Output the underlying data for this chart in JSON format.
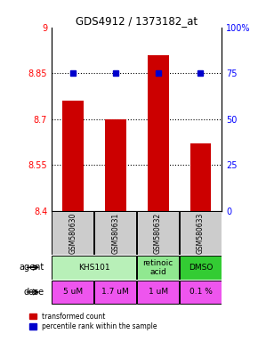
{
  "title": "GDS4912 / 1373182_at",
  "samples": [
    "GSM580630",
    "GSM580631",
    "GSM580632",
    "GSM580633"
  ],
  "bar_values": [
    8.76,
    8.7,
    8.91,
    8.62
  ],
  "dot_values": [
    75,
    75,
    75,
    75
  ],
  "ylim_left": [
    8.4,
    9.0
  ],
  "ylim_right": [
    0,
    100
  ],
  "yticks_left": [
    8.4,
    8.55,
    8.7,
    8.85,
    9.0
  ],
  "yticks_right": [
    0,
    25,
    50,
    75,
    100
  ],
  "ytick_labels_left": [
    "8.4",
    "8.55",
    "8.7",
    "8.85",
    "9"
  ],
  "ytick_labels_right": [
    "0",
    "25",
    "50",
    "75",
    "100%"
  ],
  "hlines": [
    8.55,
    8.7,
    8.85
  ],
  "agent_spans": [
    [
      0,
      2,
      "KHS101",
      "#b8f0b8"
    ],
    [
      2,
      3,
      "retinoic\nacid",
      "#90e890"
    ],
    [
      3,
      4,
      "DMSO",
      "#33cc33"
    ]
  ],
  "dose_labels": [
    "5 uM",
    "1.7 uM",
    "1 uM",
    "0.1 %"
  ],
  "dose_color": "#ee55ee",
  "bar_color": "#cc0000",
  "dot_color": "#0000cc",
  "bar_width": 0.5,
  "background_color": "#ffffff",
  "sample_bg_color": "#cccccc"
}
